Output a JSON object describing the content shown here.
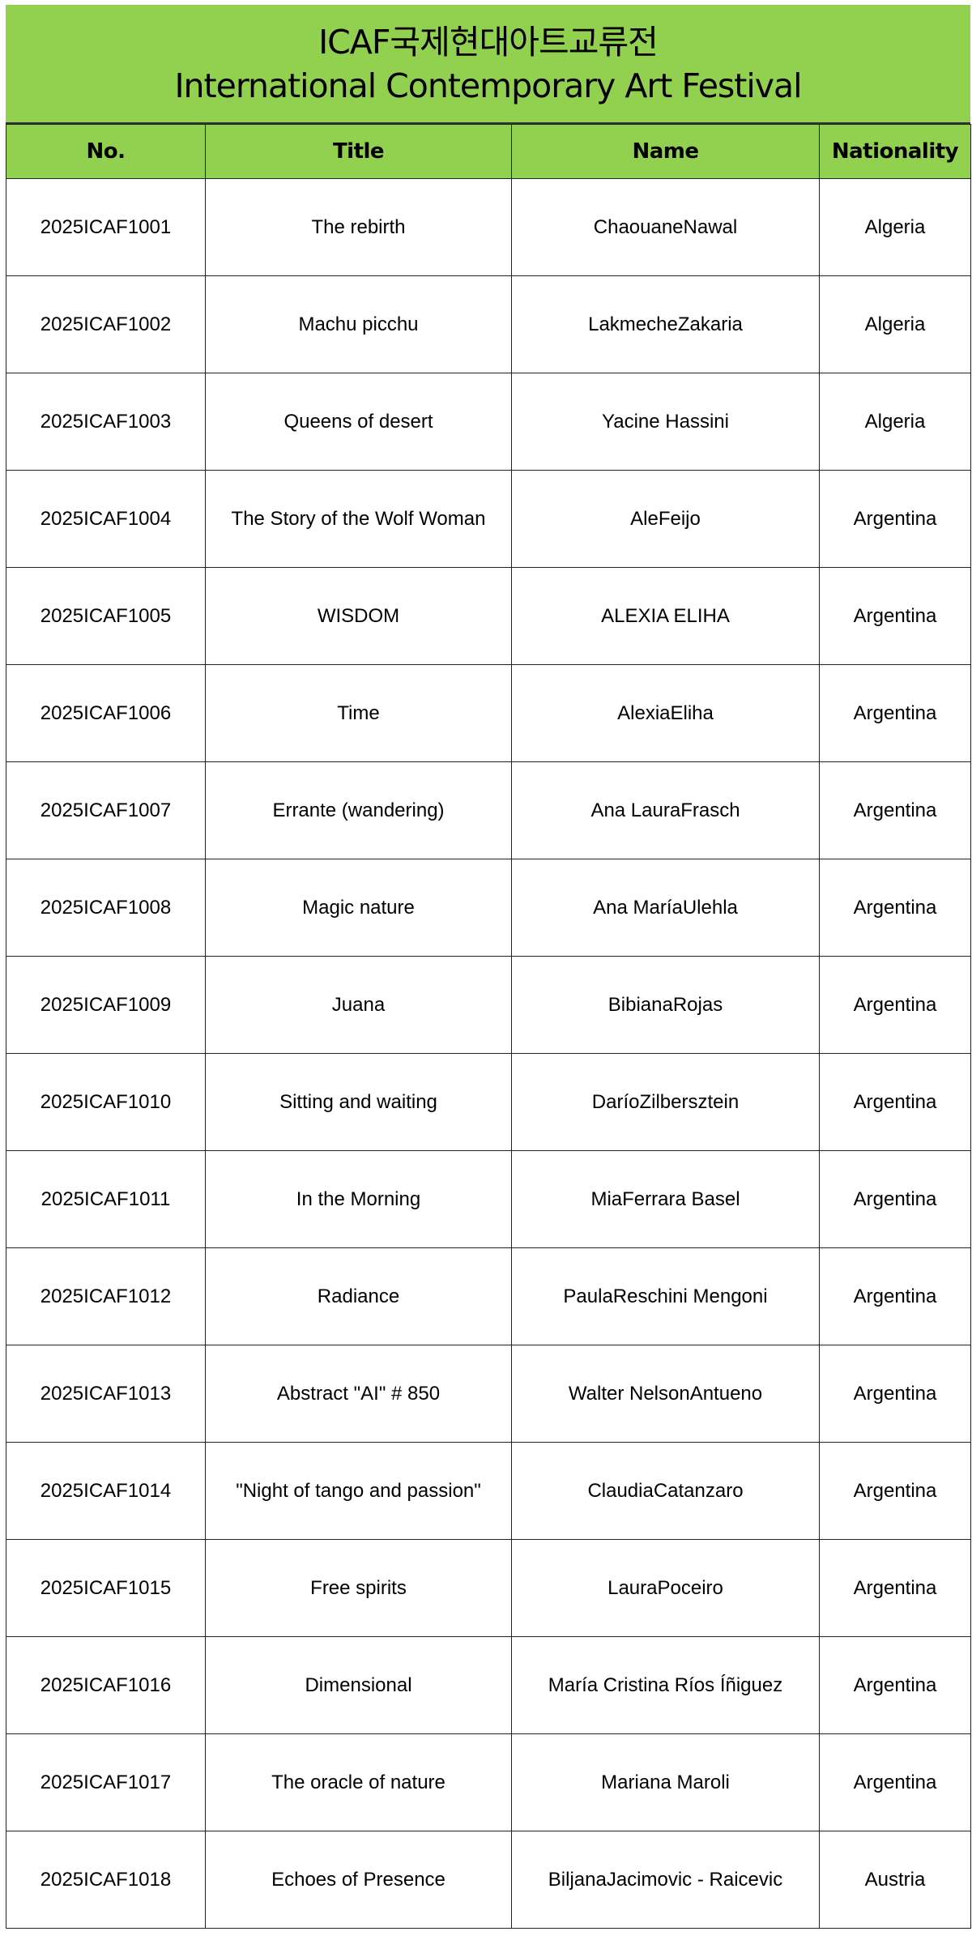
{
  "header": {
    "title_korean": "ICAF국제현대아트교류전",
    "title_english": "International Contemporary Art Festival"
  },
  "colors": {
    "header_green": "#92d050",
    "border": "#222222"
  },
  "table": {
    "columns": [
      "No.",
      "Title",
      "Name",
      "Nationality"
    ],
    "rows": [
      [
        "2025ICAF1001",
        "The rebirth",
        "ChaouaneNawal",
        "Algeria"
      ],
      [
        "2025ICAF1002",
        "Machu picchu",
        "LakmecheZakaria",
        "Algeria"
      ],
      [
        "2025ICAF1003",
        "Queens of desert",
        "Yacine Hassini",
        "Algeria"
      ],
      [
        "2025ICAF1004",
        "The Story of the Wolf Woman",
        "AleFeijo",
        "Argentina"
      ],
      [
        "2025ICAF1005",
        "WISDOM",
        "ALEXIA ELIHA",
        "Argentina"
      ],
      [
        "2025ICAF1006",
        "Time",
        "AlexiaEliha",
        "Argentina"
      ],
      [
        "2025ICAF1007",
        "Errante (wandering)",
        "Ana LauraFrasch",
        "Argentina"
      ],
      [
        "2025ICAF1008",
        "Magic nature",
        "Ana MaríaUlehla",
        "Argentina"
      ],
      [
        "2025ICAF1009",
        "Juana",
        "BibianaRojas",
        "Argentina"
      ],
      [
        "2025ICAF1010",
        "Sitting and waiting",
        "DaríoZilbersztein",
        "Argentina"
      ],
      [
        "2025ICAF1011",
        "In the Morning",
        "MiaFerrara Basel",
        "Argentina"
      ],
      [
        "2025ICAF1012",
        "Radiance",
        "PaulaReschini Mengoni",
        "Argentina"
      ],
      [
        "2025ICAF1013",
        "Abstract \"AI\" # 850",
        "Walter NelsonAntueno",
        "Argentina"
      ],
      [
        "2025ICAF1014",
        "\"Night of tango and passion\"",
        "ClaudiaCatanzaro",
        "Argentina"
      ],
      [
        "2025ICAF1015",
        "Free spirits",
        "LauraPoceiro",
        "Argentina"
      ],
      [
        "2025ICAF1016",
        "Dimensional",
        "María Cristina Ríos Íñiguez",
        "Argentina"
      ],
      [
        "2025ICAF1017",
        "The oracle of nature",
        "Mariana Maroli",
        "Argentina"
      ],
      [
        "2025ICAF1018",
        "Echoes of Presence",
        "BiljanaJacimovic - Raicevic",
        "Austria"
      ]
    ]
  }
}
